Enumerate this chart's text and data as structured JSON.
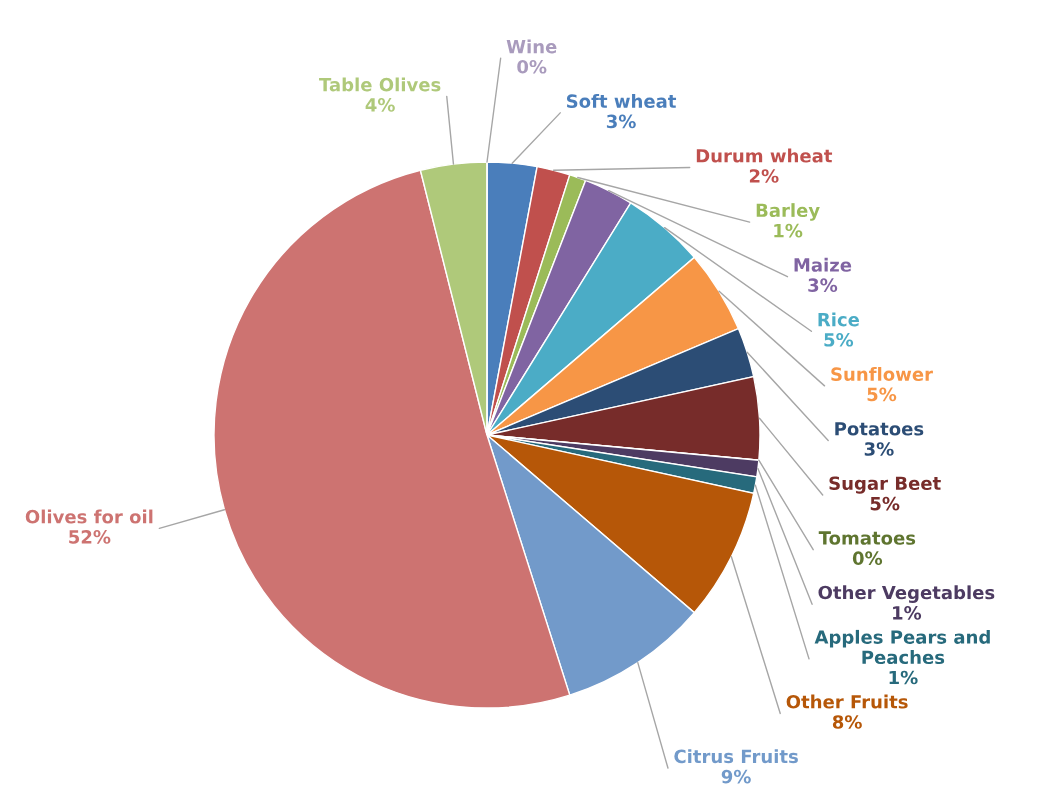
{
  "chart_data": {
    "type": "pie",
    "categories": [
      "Soft wheat",
      "Durum wheat",
      "Barley",
      "Maize",
      "Rice",
      "Sunflower",
      "Potatoes",
      "Sugar Beet",
      "Tomatoes",
      "Other Vegetables",
      "Apples Pears and Peaches",
      "Other Fruits",
      "Citrus Fruits",
      "Olives for oil",
      "Table Olives",
      "Wine"
    ],
    "values": [
      3,
      2,
      1,
      3,
      5,
      5,
      3,
      5,
      0,
      1,
      1,
      8,
      9,
      52,
      4,
      0
    ],
    "value_labels": [
      "3%",
      "2%",
      "1%",
      "3%",
      "5%",
      "5%",
      "3%",
      "5%",
      "0%",
      "1%",
      "1%",
      "8%",
      "9%",
      "52%",
      "4%",
      "0%"
    ],
    "colors": [
      "#4a7ebb",
      "#c0504d",
      "#9bbb59",
      "#8064a2",
      "#4bacc6",
      "#f79646",
      "#2c4d75",
      "#772c2a",
      "#5f7530",
      "#4d3b62",
      "#276a7c",
      "#b65708",
      "#729aca",
      "#cd7371",
      "#afc97a",
      "#a99bbd"
    ]
  }
}
